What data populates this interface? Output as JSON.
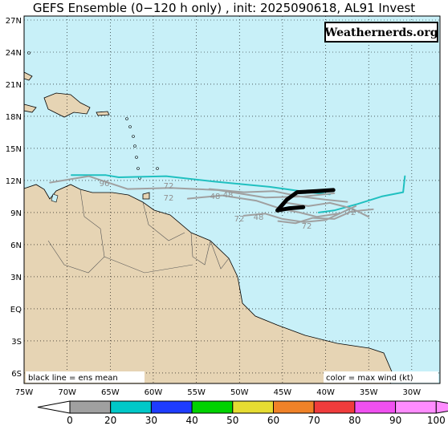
{
  "title": "GEFS Ensemble (0−120 h only) , init: 2025090618, AL91 Invest",
  "watermark": "Weathernerds.org",
  "legend_left": "black line = ens mean",
  "legend_right": "color = max wind (kt)",
  "lat_labels": [
    "27N",
    "24N",
    "21N",
    "18N",
    "15N",
    "12N",
    "9N",
    "6N",
    "3N",
    "EQ",
    "3S",
    "6S"
  ],
  "lon_labels": [
    "75W",
    "70W",
    "65W",
    "60W",
    "55W",
    "50W",
    "45W",
    "40W",
    "35W",
    "30W"
  ],
  "colorbar": {
    "labels": [
      "0",
      "20",
      "30",
      "40",
      "50",
      "60",
      "70",
      "80",
      "90",
      "100"
    ],
    "colors": [
      "#ffffff",
      "#a0a0a0",
      "#00c8c8",
      "#1e3cff",
      "#00d200",
      "#e6dc32",
      "#f08228",
      "#f03c3c",
      "#f050f0",
      "#ff8cff"
    ]
  },
  "mean_track": {
    "color": "#000000",
    "lon": [
      -39.1,
      -41.0,
      -43.3,
      -44.5,
      -45.6,
      -44.2,
      -42.6
    ],
    "lat": [
      11.1,
      11.0,
      10.9,
      10.2,
      9.2,
      9.4,
      9.5
    ]
  },
  "member_tracks": [
    {
      "color": "#20c0c0",
      "lon": [
        -69.5,
        -65.5,
        -64.0,
        -58.5,
        -53.0,
        -46.5,
        -42.0,
        -39.5
      ],
      "lat": [
        12.5,
        12.5,
        12.3,
        12.4,
        11.9,
        11.4,
        10.9,
        10.7
      ]
    },
    {
      "color": "#20c0c0",
      "lon": [
        -30.8,
        -31.0,
        -33.5,
        -36.3,
        -39.0,
        -40.8
      ],
      "lat": [
        12.4,
        10.9,
        10.5,
        9.8,
        9.2,
        9.0
      ]
    },
    {
      "color": "#a0a0a0",
      "lon": [
        -72.0,
        -67.5,
        -63.0,
        -58.0,
        -52.5,
        -47.0,
        -42.5,
        -39.0
      ],
      "lat": [
        11.8,
        12.4,
        11.2,
        11.3,
        11.1,
        10.4,
        10.5,
        10.8
      ]
    },
    {
      "color": "#a0a0a0",
      "lon": [
        -56.0,
        -52.0,
        -48.0,
        -45.0,
        -43.0,
        -41.0,
        -38.5
      ],
      "lat": [
        10.3,
        10.6,
        10.1,
        9.3,
        9.0,
        8.6,
        8.9
      ]
    },
    {
      "color": "#a0a0a0",
      "lon": [
        -49.5,
        -47.0,
        -45.0,
        -42.5,
        -40.0,
        -36.5
      ],
      "lat": [
        8.7,
        8.9,
        8.4,
        8.1,
        8.3,
        9.6
      ]
    },
    {
      "color": "#a0a0a0",
      "lon": [
        -45.5,
        -43.5,
        -41.5,
        -39.0,
        -37.0,
        -34.5
      ],
      "lat": [
        8.2,
        8.0,
        8.5,
        8.4,
        9.1,
        9.3
      ]
    },
    {
      "color": "#a0a0a0",
      "lon": [
        -53.5,
        -49.5,
        -46.0,
        -43.0,
        -40.0,
        -37.5
      ],
      "lat": [
        11.2,
        10.9,
        11.0,
        10.5,
        10.2,
        10.0
      ]
    },
    {
      "color": "#a0a0a0",
      "lon": [
        -44.5,
        -42.0,
        -39.5,
        -37.0,
        -35.0
      ],
      "lat": [
        9.9,
        9.6,
        9.9,
        9.4,
        8.6
      ]
    }
  ],
  "hour_labels": [
    "96",
    "72",
    "72",
    "48",
    "48",
    "72",
    "48",
    "72",
    "72"
  ]
}
